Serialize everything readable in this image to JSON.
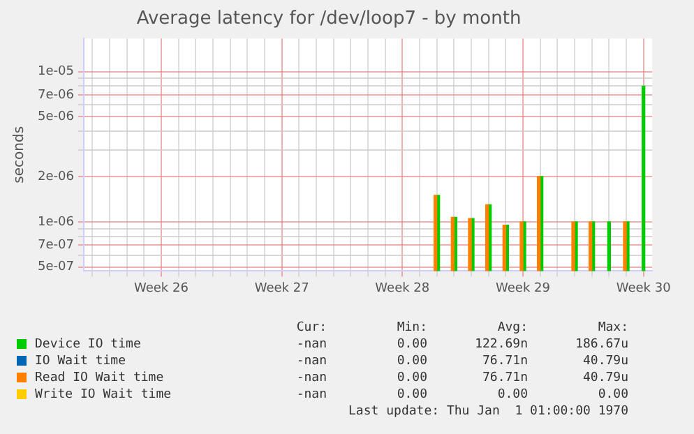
{
  "chart_data": {
    "type": "bar",
    "title": "Average latency for /dev/loop7 - by month",
    "ylabel": "seconds",
    "log": true,
    "grid": true,
    "legend": "bottom left",
    "categories": [
      null,
      null,
      null,
      null,
      "Week 26",
      null,
      null,
      null,
      null,
      null,
      null,
      "Week 27",
      null,
      null,
      null,
      null,
      null,
      null,
      "Week 28",
      null,
      null,
      null,
      null,
      null,
      null,
      "Week 29",
      null,
      null,
      null,
      null,
      null,
      null,
      "Week 30"
    ],
    "ylim": [
      4.7e-07,
      1.66e-05
    ],
    "yticks": [
      {
        "value": 5e-07,
        "label": "5e-07"
      },
      {
        "value": 6e-07,
        "label": null
      },
      {
        "value": 7e-07,
        "label": "7e-07"
      },
      {
        "value": 8e-07,
        "label": null
      },
      {
        "value": 9e-07,
        "label": null
      },
      {
        "value": 1e-06,
        "label": "1e-06"
      },
      {
        "value": 2e-06,
        "label": "2e-06"
      },
      {
        "value": 3e-06,
        "label": null
      },
      {
        "value": 4e-06,
        "label": null
      },
      {
        "value": 5e-06,
        "label": "5e-06"
      },
      {
        "value": 6e-06,
        "label": null
      },
      {
        "value": 7e-06,
        "label": "7e-06"
      },
      {
        "value": 8e-06,
        "label": null
      },
      {
        "value": 9e-06,
        "label": null
      },
      {
        "value": 1e-05,
        "label": "1e-05"
      }
    ],
    "series": [
      {
        "name": "Device IO time",
        "color": "#00cc00",
        "values": [
          null,
          null,
          null,
          null,
          null,
          null,
          null,
          null,
          null,
          null,
          null,
          null,
          null,
          null,
          null,
          null,
          null,
          null,
          null,
          null,
          1.5e-06,
          1.07e-06,
          1.05e-06,
          1.3e-06,
          9.5e-07,
          1e-06,
          2e-06,
          null,
          1e-06,
          1e-06,
          1e-06,
          1e-06,
          8e-06
        ]
      },
      {
        "name": "IO Wait time",
        "color": "#0066b3",
        "values": [
          null,
          null,
          null,
          null,
          null,
          null,
          null,
          null,
          null,
          null,
          null,
          null,
          null,
          null,
          null,
          null,
          null,
          null,
          null,
          null,
          null,
          null,
          null,
          null,
          null,
          null,
          null,
          null,
          null,
          null,
          null,
          null,
          null
        ]
      },
      {
        "name": "Read IO Wait time",
        "color": "#ff8000",
        "values": [
          null,
          null,
          null,
          null,
          null,
          null,
          null,
          null,
          null,
          null,
          null,
          null,
          null,
          null,
          null,
          null,
          null,
          null,
          null,
          null,
          1.5e-06,
          1.07e-06,
          1.05e-06,
          1.3e-06,
          9.5e-07,
          1e-06,
          2e-06,
          null,
          1e-06,
          1e-06,
          null,
          1e-06,
          null
        ]
      },
      {
        "name": "Write IO Wait time",
        "color": "#ffcc00",
        "values": [
          null,
          null,
          null,
          null,
          null,
          null,
          null,
          null,
          null,
          null,
          null,
          null,
          null,
          null,
          null,
          null,
          null,
          null,
          null,
          null,
          null,
          null,
          null,
          null,
          null,
          null,
          null,
          null,
          null,
          null,
          null,
          null,
          null
        ]
      }
    ],
    "annotations": [
      "Cur:",
      "Min:",
      "Avg:",
      "Max:",
      "-nan",
      "0.00",
      "122.69n",
      "186.67u",
      "-nan",
      "0.00",
      "76.71n",
      "40.79u",
      "-nan",
      "0.00",
      "76.71n",
      "40.79u",
      "-nan",
      "0.00",
      "0.00",
      "0.00",
      "Last update: Thu Jan  1 01:00:00 1970"
    ]
  }
}
